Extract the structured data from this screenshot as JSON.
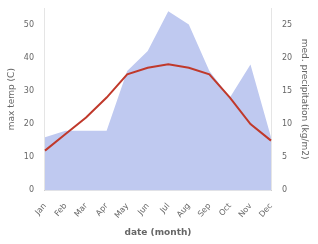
{
  "chart_data": {
    "type": "line",
    "xlabel": "date (month)",
    "ylabel": "max temp (C)",
    "y2label": "med. precipitation (kg/m2)",
    "categories": [
      "Jan",
      "Feb",
      "Mar",
      "Apr",
      "May",
      "Jun",
      "Jul",
      "Aug",
      "Sep",
      "Oct",
      "Nov",
      "Dec"
    ],
    "series": [
      {
        "type": "area",
        "color": "#bfc9f0",
        "axis": "y2",
        "values": [
          8,
          9,
          9,
          9,
          18,
          21,
          27,
          25,
          18,
          14,
          19,
          8
        ]
      },
      {
        "type": "line",
        "color": "#c0392b",
        "values": [
          12,
          17,
          22,
          28,
          35,
          37,
          38,
          37,
          35,
          28,
          20,
          15
        ]
      }
    ],
    "ylim": [
      0,
      55
    ],
    "yticks": [
      0,
      10,
      20,
      30,
      40,
      50
    ],
    "y2lim": [
      0,
      27.5
    ],
    "y2ticks": [
      0,
      5,
      10,
      15,
      20,
      25
    ],
    "grid": false
  }
}
